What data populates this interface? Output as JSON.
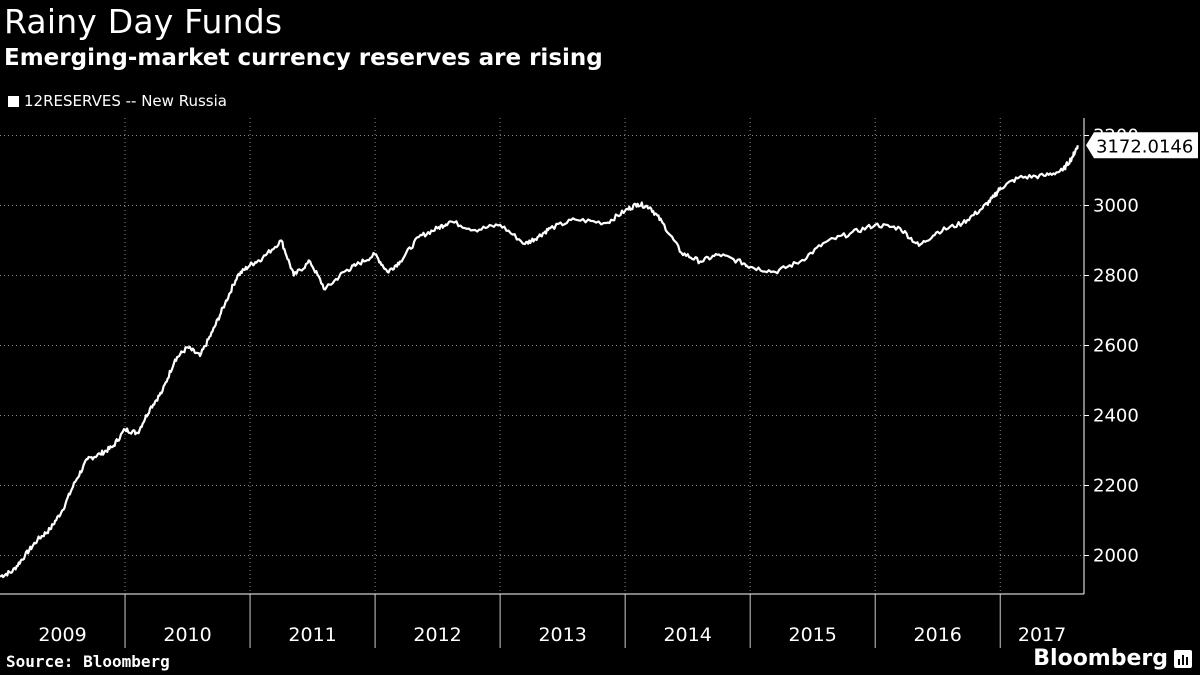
{
  "header": {
    "title": "Rainy Day Funds",
    "subtitle": "Emerging-market currency reserves are rising"
  },
  "legend": {
    "label": "12RESERVES -- New Russia"
  },
  "footer": {
    "source": "Source: Bloomberg",
    "brand": "Bloomberg"
  },
  "colors": {
    "background": "#000000",
    "line": "#ffffff",
    "grid": "#888888"
  },
  "chart_data": {
    "type": "line",
    "title": "Rainy Day Funds",
    "subtitle": "Emerging-market currency reserves are rising",
    "xlabel": "",
    "ylabel": "",
    "xlim": [
      2009.0,
      2017.67
    ],
    "ylim": [
      1890,
      3250
    ],
    "y_ticks": [
      2000,
      2200,
      2400,
      2600,
      2800,
      3000,
      3200
    ],
    "x_categories": [
      "2009",
      "2010",
      "2011",
      "2012",
      "2013",
      "2014",
      "2015",
      "2016",
      "2017"
    ],
    "grid": true,
    "legend_position": "top-left",
    "last_value_label": "3172.0146",
    "series": [
      {
        "name": "12RESERVES -- New Russia",
        "x": [
          2009.0,
          2009.1,
          2009.2,
          2009.3,
          2009.4,
          2009.5,
          2009.6,
          2009.7,
          2009.8,
          2009.9,
          2010.0,
          2010.1,
          2010.2,
          2010.3,
          2010.4,
          2010.5,
          2010.6,
          2010.7,
          2010.8,
          2010.9,
          2011.0,
          2011.1,
          2011.25,
          2011.35,
          2011.48,
          2011.6,
          2011.75,
          2011.85,
          2012.0,
          2012.1,
          2012.2,
          2012.35,
          2012.5,
          2012.6,
          2012.8,
          2013.0,
          2013.2,
          2013.3,
          2013.4,
          2013.6,
          2013.85,
          2014.0,
          2014.1,
          2014.2,
          2014.3,
          2014.45,
          2014.6,
          2014.75,
          2014.95,
          2015.0,
          2015.2,
          2015.4,
          2015.6,
          2015.8,
          2016.0,
          2016.2,
          2016.35,
          2016.5,
          2016.7,
          2016.85,
          2016.95,
          2017.0,
          2017.15,
          2017.35,
          2017.5,
          2017.58,
          2017.62
        ],
        "values": [
          1940,
          1955,
          2000,
          2045,
          2075,
          2130,
          2210,
          2275,
          2290,
          2310,
          2360,
          2350,
          2420,
          2470,
          2560,
          2595,
          2570,
          2640,
          2720,
          2800,
          2830,
          2850,
          2900,
          2800,
          2840,
          2760,
          2810,
          2830,
          2860,
          2810,
          2840,
          2910,
          2935,
          2955,
          2930,
          2945,
          2890,
          2910,
          2935,
          2960,
          2950,
          2985,
          3005,
          2995,
          2950,
          2865,
          2840,
          2860,
          2835,
          2825,
          2810,
          2840,
          2895,
          2920,
          2945,
          2935,
          2885,
          2925,
          2950,
          2990,
          3025,
          3050,
          3080,
          3085,
          3100,
          3140,
          3172
        ]
      }
    ]
  }
}
